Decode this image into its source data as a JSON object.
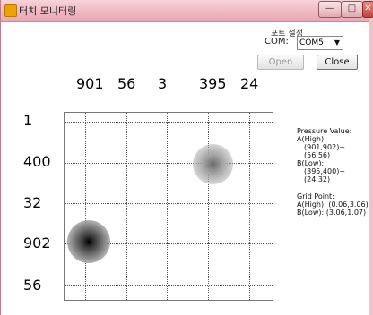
{
  "window": {
    "title": "터치 모니터링",
    "buttons": {
      "minimize": "—",
      "maximize": "□",
      "close": "✕"
    }
  },
  "port": {
    "title": "포트 설정",
    "com_label": "COM:",
    "com_value": "COM5",
    "open_label": "Open",
    "close_label": "Close"
  },
  "chart_data": {
    "type": "heatmap",
    "columns": [
      "901",
      "56",
      "3",
      "395",
      "24"
    ],
    "rows": [
      "1",
      "400",
      "32",
      "902",
      "56"
    ],
    "hotspots": [
      {
        "name": "A(High)",
        "value": [
          901,
          902
        ],
        "intensity": "high"
      },
      {
        "name": "B(Low)",
        "value": [
          395,
          400
        ],
        "intensity": "low"
      }
    ]
  },
  "info": {
    "pressure_title": "Pressure Value:",
    "a_high_label": "A(High):",
    "a_high_value": "(901,902)~(56,56)",
    "b_low_label": "B(Low):",
    "b_low_value": "(395,400)~(24,32)",
    "grid_title": "Grid Point:",
    "grid_a": "A(High): (0.06,3.06)",
    "grid_b": "B(Low): (3.06,1.07)"
  }
}
